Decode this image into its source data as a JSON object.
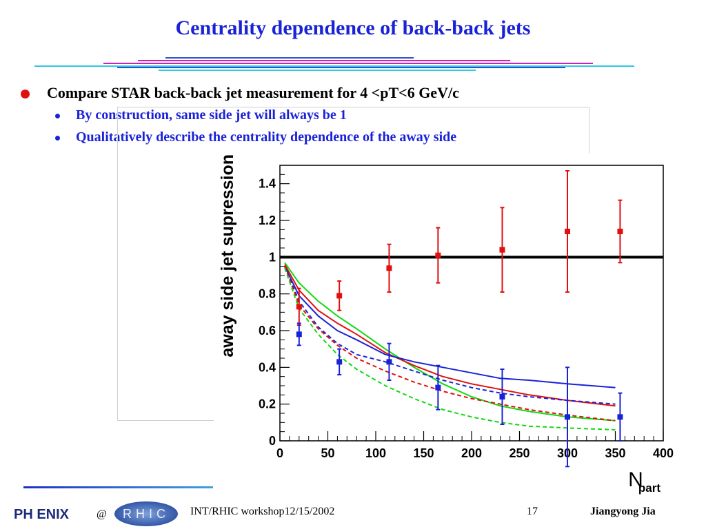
{
  "slide": {
    "title": "Centrality dependence of back-back jets",
    "bullet": "Compare STAR back-back jet measurement for 4 <pT<6 GeV/c",
    "sub_bullets": [
      "By construction, same side jet will always be 1",
      "Qualitatively describe the centrality dependence of the away side"
    ]
  },
  "footer": {
    "logo_text": "PH ENIX",
    "at": "@",
    "rhic_logo": "RHIC",
    "event": "INT/RHIC workshop12/15/2002",
    "page": "17",
    "author": "Jiangyong Jia"
  },
  "colors": {
    "title": "#1a22d8",
    "bullet": "#e01010",
    "red": "#e01010",
    "blue": "#1a22d8",
    "green": "#10d810",
    "black": "#000000"
  },
  "chart_data": {
    "type": "line",
    "title": "",
    "xlabel": "N_part",
    "ylabel": "away side jet supression",
    "xlim": [
      0,
      400
    ],
    "ylim": [
      0,
      1.5
    ],
    "x_ticks": [
      0,
      50,
      100,
      150,
      200,
      250,
      300,
      350,
      400
    ],
    "y_ticks": [
      0,
      0.2,
      0.4,
      0.6,
      0.8,
      1,
      1.2,
      1.4
    ],
    "y_tick_labels": [
      "0",
      "0.2",
      "0.4",
      "0.6",
      "0.8",
      "1",
      "1.2",
      "1.4"
    ],
    "reference_line": {
      "y": 1,
      "color": "#000000"
    },
    "points": [
      {
        "name": "",
        "color": "#e01010",
        "x": [
          20,
          62,
          114,
          165,
          232,
          300,
          355
        ],
        "y": [
          0.73,
          0.79,
          0.94,
          1.01,
          1.04,
          1.14,
          1.14
        ],
        "err": [
          0.1,
          0.08,
          0.13,
          0.15,
          0.23,
          0.33,
          0.17
        ]
      },
      {
        "name": "",
        "color": "#1a22d8",
        "x": [
          20,
          62,
          114,
          165,
          232,
          300,
          355
        ],
        "y": [
          0.58,
          0.43,
          0.43,
          0.29,
          0.24,
          0.13,
          0.13
        ],
        "err": [
          0.06,
          0.07,
          0.1,
          0.12,
          0.15,
          0.27,
          0.13
        ]
      }
    ],
    "series": [
      {
        "name": "",
        "color": "#10d810",
        "dash": false,
        "x": [
          5,
          20,
          40,
          60,
          80,
          110,
          140,
          170,
          200,
          230,
          260,
          300,
          350
        ],
        "y": [
          0.97,
          0.86,
          0.76,
          0.68,
          0.61,
          0.5,
          0.4,
          0.31,
          0.24,
          0.19,
          0.16,
          0.13,
          0.11
        ]
      },
      {
        "name": "",
        "color": "#e01010",
        "dash": false,
        "x": [
          5,
          20,
          40,
          60,
          80,
          110,
          140,
          170,
          200,
          230,
          260,
          300,
          350
        ],
        "y": [
          0.96,
          0.82,
          0.71,
          0.64,
          0.58,
          0.48,
          0.41,
          0.35,
          0.31,
          0.28,
          0.25,
          0.22,
          0.19
        ]
      },
      {
        "name": "",
        "color": "#1a22d8",
        "dash": false,
        "x": [
          5,
          20,
          40,
          60,
          80,
          110,
          140,
          170,
          200,
          230,
          260,
          300,
          350
        ],
        "y": [
          0.95,
          0.79,
          0.68,
          0.6,
          0.55,
          0.47,
          0.43,
          0.4,
          0.37,
          0.34,
          0.33,
          0.31,
          0.29
        ]
      },
      {
        "name": "",
        "color": "#1a22d8",
        "dash": true,
        "x": [
          5,
          20,
          40,
          60,
          80,
          110,
          140,
          170,
          200,
          230,
          260,
          300,
          350
        ],
        "y": [
          0.95,
          0.76,
          0.62,
          0.53,
          0.47,
          0.43,
          0.38,
          0.33,
          0.29,
          0.26,
          0.24,
          0.22,
          0.2
        ]
      },
      {
        "name": "",
        "color": "#e01010",
        "dash": true,
        "x": [
          5,
          20,
          40,
          60,
          80,
          110,
          140,
          170,
          200,
          230,
          260,
          300,
          350
        ],
        "y": [
          0.95,
          0.74,
          0.61,
          0.52,
          0.45,
          0.38,
          0.32,
          0.27,
          0.23,
          0.2,
          0.17,
          0.14,
          0.11
        ]
      },
      {
        "name": "",
        "color": "#10d810",
        "dash": true,
        "x": [
          5,
          20,
          40,
          60,
          80,
          110,
          140,
          170,
          200,
          230,
          260,
          300,
          350
        ],
        "y": [
          0.94,
          0.72,
          0.58,
          0.47,
          0.39,
          0.3,
          0.23,
          0.17,
          0.13,
          0.1,
          0.08,
          0.07,
          0.06
        ]
      }
    ]
  }
}
